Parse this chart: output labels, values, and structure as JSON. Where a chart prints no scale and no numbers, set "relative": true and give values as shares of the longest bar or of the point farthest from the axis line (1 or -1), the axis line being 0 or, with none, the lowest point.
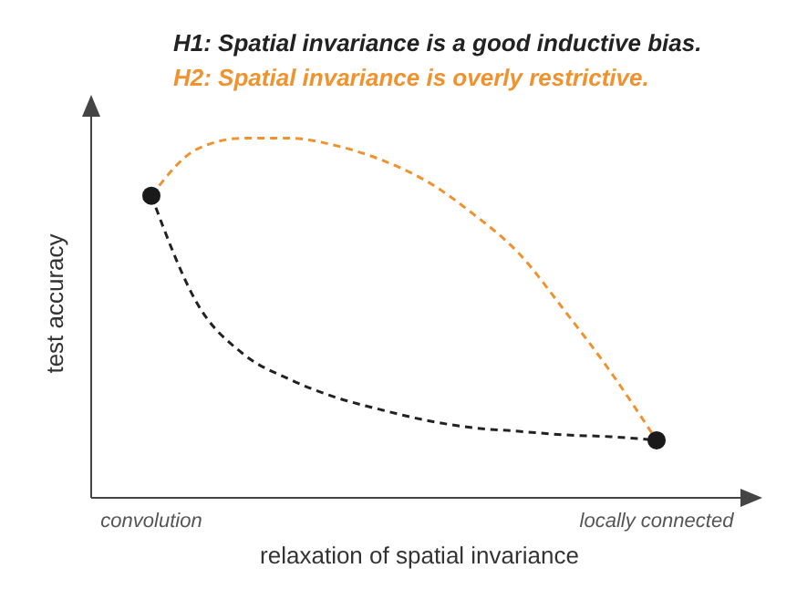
{
  "chart_data": {
    "type": "line",
    "relative": true,
    "xlabel": "relaxation of spatial invariance",
    "ylabel": "test accuracy",
    "categories": [
      "convolution",
      null,
      null,
      null,
      null,
      null,
      null,
      null,
      null,
      null,
      null,
      "locally connected"
    ],
    "legend": "top",
    "line_style": "dashed",
    "marker": "none",
    "series": [
      {
        "name": "H1: Spatial invariance is a good inductive bias.",
        "color": "#222222",
        "values": [
          0.84,
          0.54,
          0.4,
          0.33,
          0.28,
          0.245,
          0.215,
          0.195,
          0.185,
          0.175,
          0.17,
          0.16
        ]
      },
      {
        "name": "H2: Spatial invariance is overly restrictive.",
        "color": "#f0922e",
        "values": [
          0.84,
          0.97,
          1,
          1,
          0.98,
          0.94,
          0.88,
          0.79,
          0.68,
          0.52,
          0.35,
          0.16
        ]
      },
      {
        "type": "scatter",
        "marker": "circle",
        "color": "#1a1a1a",
        "values": [
          0.84,
          null,
          null,
          null,
          null,
          null,
          null,
          null,
          null,
          null,
          null,
          0.16
        ]
      }
    ]
  }
}
